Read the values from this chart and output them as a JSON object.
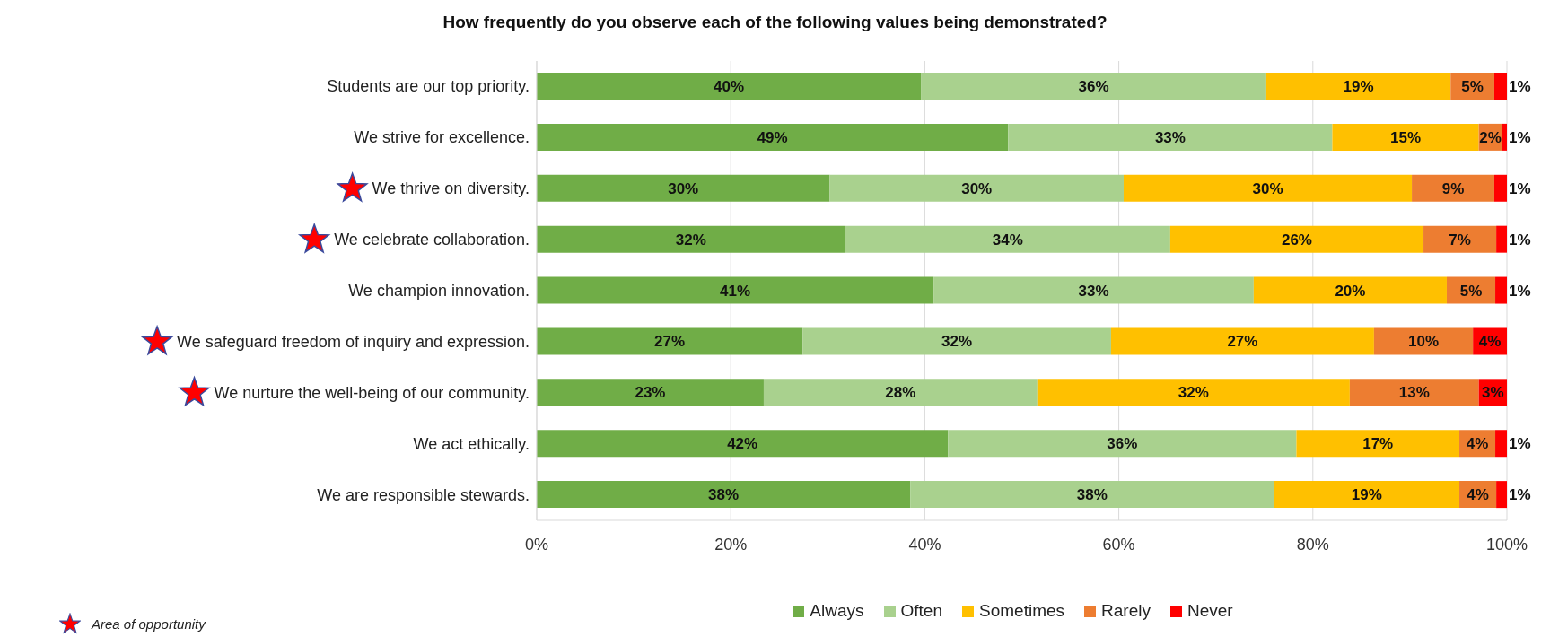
{
  "chart_data": {
    "type": "bar",
    "orientation": "horizontal",
    "stacked": true,
    "title": "How frequently do you observe each of the following values being demonstrated?",
    "categories": [
      "Students are our top priority.",
      "We strive for excellence.",
      "We thrive on diversity.",
      "We celebrate collaboration.",
      "We champion innovation.",
      "We safeguard freedom of inquiry and expression.",
      "We nurture the well-being of our community.",
      "We act ethically.",
      "We are responsible stewards."
    ],
    "series": [
      {
        "name": "Always",
        "color": "#70ad47",
        "values": [
          39.6,
          48.6,
          30.2,
          31.8,
          40.9,
          27.4,
          23.4,
          42.4,
          38.5
        ],
        "value_labels": [
          "40%",
          "49%",
          "30%",
          "32%",
          "41%",
          "27%",
          "23%",
          "42%",
          "38%"
        ]
      },
      {
        "name": "Often",
        "color": "#a9d18e",
        "values": [
          35.6,
          33.4,
          30.3,
          33.5,
          33.0,
          31.8,
          28.2,
          35.9,
          37.5
        ],
        "value_labels": [
          "36%",
          "33%",
          "30%",
          "34%",
          "33%",
          "32%",
          "28%",
          "36%",
          "38%"
        ]
      },
      {
        "name": "Sometimes",
        "color": "#ffc000",
        "values": [
          19.0,
          15.1,
          29.7,
          26.1,
          19.9,
          27.1,
          32.2,
          16.8,
          19.1
        ],
        "value_labels": [
          "19%",
          "15%",
          "30%",
          "26%",
          "20%",
          "27%",
          "32%",
          "17%",
          "19%"
        ]
      },
      {
        "name": "Rarely",
        "color": "#ed7d31",
        "values": [
          4.5,
          2.4,
          8.5,
          7.5,
          5.0,
          10.2,
          13.3,
          3.7,
          3.8
        ],
        "value_labels": [
          "5%",
          "2%",
          "9%",
          "7%",
          "5%",
          "10%",
          "13%",
          "4%",
          "4%"
        ]
      },
      {
        "name": "Never",
        "color": "#ff0000",
        "values": [
          1.3,
          0.5,
          1.3,
          1.1,
          1.2,
          3.5,
          2.9,
          1.2,
          1.1
        ],
        "value_labels": [
          "1%",
          "1%",
          "1%",
          "1%",
          "1%",
          "4%",
          "3%",
          "1%",
          "1%"
        ]
      }
    ],
    "xlim": [
      0,
      100
    ],
    "xticks": [
      {
        "value": 0,
        "label": "0%"
      },
      {
        "value": 20,
        "label": "20%"
      },
      {
        "value": 40,
        "label": "40%"
      },
      {
        "value": 60,
        "label": "60%"
      },
      {
        "value": 80,
        "label": "80%"
      },
      {
        "value": 100,
        "label": "100%"
      }
    ],
    "grid": "x",
    "legend": "bottom",
    "annotations": [
      "Area of opportunity"
    ]
  }
}
